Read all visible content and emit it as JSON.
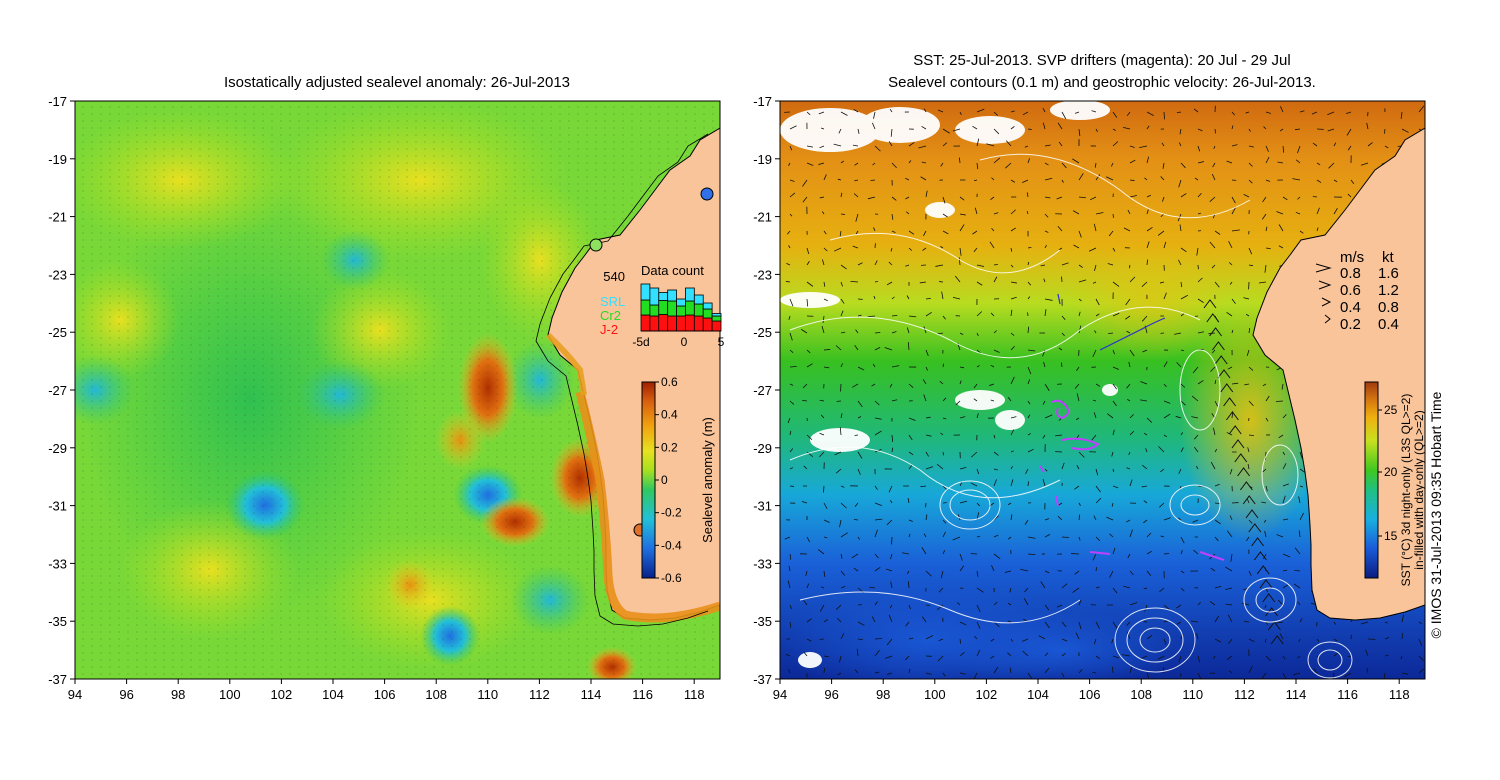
{
  "left_panel": {
    "title": "Isostatically adjusted sealevel anomaly: 26-Jul-2013",
    "colorbar": {
      "label": "Sealevel anomaly (m)",
      "ticks": [
        "0.6",
        "0.4",
        "0.2",
        "0",
        "-0.2",
        "-0.4",
        "-0.6"
      ]
    },
    "data_count": {
      "title": "Data count",
      "max_label": "540",
      "legend": [
        {
          "label": "SRL",
          "color": "#33e0ff"
        },
        {
          "label": "Cr2",
          "color": "#22dd22"
        },
        {
          "label": "J-2",
          "color": "#ff1010"
        }
      ],
      "x_ticks": [
        "-5d",
        "0",
        "5"
      ],
      "bars": [
        {
          "j2": 0.32,
          "cr2": 0.3,
          "srl": 0.32
        },
        {
          "j2": 0.3,
          "cr2": 0.22,
          "srl": 0.34
        },
        {
          "j2": 0.33,
          "cr2": 0.28,
          "srl": 0.16
        },
        {
          "j2": 0.3,
          "cr2": 0.3,
          "srl": 0.22
        },
        {
          "j2": 0.3,
          "cr2": 0.2,
          "srl": 0.14
        },
        {
          "j2": 0.32,
          "cr2": 0.28,
          "srl": 0.26
        },
        {
          "j2": 0.3,
          "cr2": 0.24,
          "srl": 0.18
        },
        {
          "j2": 0.26,
          "cr2": 0.18,
          "srl": 0.12
        },
        {
          "j2": 0.2,
          "cr2": 0.1,
          "srl": 0.05
        }
      ]
    }
  },
  "right_panel": {
    "title_line1": "SST: 25-Jul-2013. SVP drifters (magenta): 20 Jul - 29 Jul",
    "title_line2": "Sealevel contours (0.1 m) and geostrophic velocity: 26-Jul-2013.",
    "colorbar": {
      "label_line1": "SST (°C) 3d night-only (L3S QL>=2)",
      "label_line2": "in-filled with day-only (QL>=2)",
      "ticks": [
        "25",
        "20",
        "15"
      ]
    },
    "speed_legend": {
      "header_ms": "m/s",
      "header_kt": "kt",
      "rows": [
        {
          "ms": "0.8",
          "kt": "1.6"
        },
        {
          "ms": "0.6",
          "kt": "1.2"
        },
        {
          "ms": "0.4",
          "kt": "0.8"
        },
        {
          "ms": "0.2",
          "kt": "0.4"
        }
      ]
    },
    "credit": "© IMOS 31-Jul-2013 09:35 Hobart Time"
  },
  "axes": {
    "lat_ticks": [
      "-17",
      "-19",
      "-21",
      "-23",
      "-25",
      "-27",
      "-29",
      "-31",
      "-33",
      "-35",
      "-37"
    ],
    "lon_ticks": [
      "94",
      "96",
      "98",
      "100",
      "102",
      "104",
      "106",
      "108",
      "110",
      "112",
      "114",
      "116",
      "118"
    ]
  },
  "colors": {
    "land": "#f9c49a",
    "ssh_scale": [
      "#08208a",
      "#1f6fe0",
      "#22c0d8",
      "#30c860",
      "#a8e020",
      "#e8e020",
      "#f0a010",
      "#d86010",
      "#a02000"
    ],
    "sst_scale": [
      "#0a1c80",
      "#1a5ad8",
      "#19b0e0",
      "#20c080",
      "#40c820",
      "#c8e020",
      "#f0b010",
      "#d07010",
      "#a03a10"
    ],
    "drifter": "#c040ff"
  }
}
